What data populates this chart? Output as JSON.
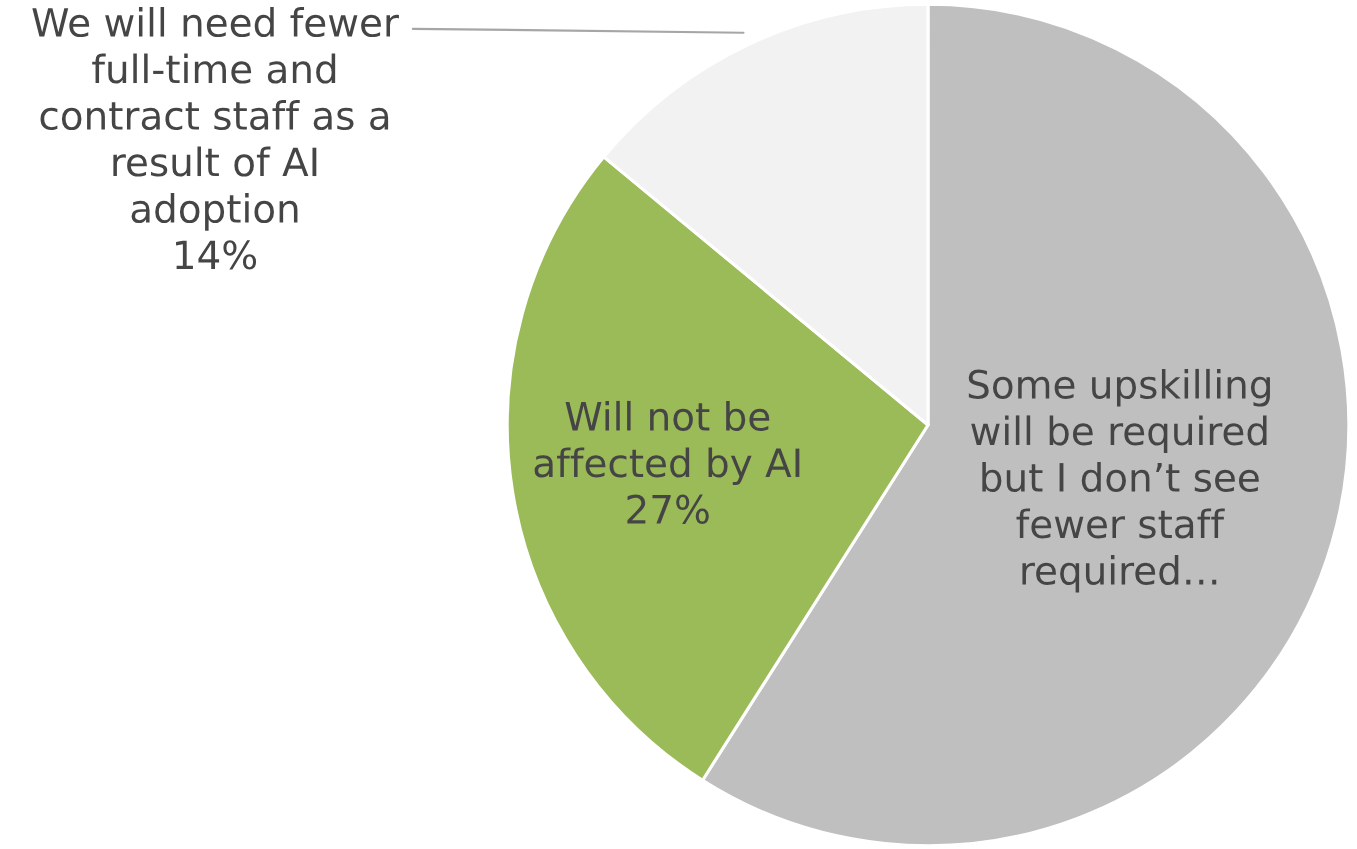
{
  "chart_data": {
    "type": "pie",
    "categories": [
      "Some upskilling\nwill be required\nbut I don’t see\nfewer staff\nrequired…",
      "Will not be\naffected by AI",
      "We will need fewer\nfull-time and\ncontract staff as a\nresult of AI\nadoption"
    ],
    "values": [
      59,
      27,
      14
    ],
    "colors": [
      "#bfbfbf",
      "#9bbb59",
      "#f2f2f2"
    ],
    "value_labels": [
      null,
      "27%",
      "14%"
    ]
  }
}
